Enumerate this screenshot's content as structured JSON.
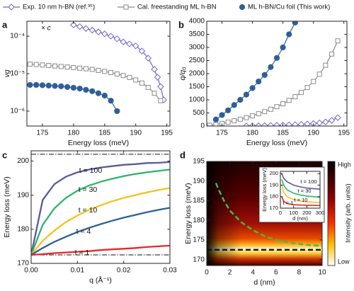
{
  "chart_data": [
    {
      "type": "line",
      "label": "a",
      "x_label": "Energy loss (meV)",
      "y_label": "vg",
      "annotations": [
        "× c"
      ],
      "log_y": true,
      "xlim": [
        172.5,
        195.5
      ],
      "xticks": [
        175,
        180,
        185,
        190,
        195
      ],
      "ylim": [
        4e-07,
        0.00025
      ],
      "yticks": [
        {
          "value": 1e-06,
          "label": "10⁻⁶"
        },
        {
          "value": 1e-05,
          "label": "10⁻⁵"
        },
        {
          "value": 0.0001,
          "label": "10⁻⁴"
        }
      ],
      "series": [
        {
          "name": "Exp. 10 nm h-BN (ref.³⁵)",
          "color": "#7466c4",
          "marker": "diamond",
          "x": [
            180,
            181,
            182,
            183,
            184,
            185,
            186,
            187,
            188,
            189,
            190,
            191,
            192,
            193,
            193.5,
            194,
            194.5
          ],
          "values": [
            0.0002,
            0.00018,
            0.00016,
            0.000145,
            0.00013,
            0.000115,
            0.0001,
            8.5e-05,
            7e-05,
            6.2e-05,
            5.5e-05,
            4e-05,
            2.6e-05,
            1.3e-05,
            8e-06,
            4.5e-06,
            2e-06
          ]
        },
        {
          "name": "Cal. freestanding ML h-BN",
          "color": "#8c8c8c",
          "marker": "square",
          "x": [
            173,
            174,
            175,
            176,
            177,
            178,
            179,
            180,
            181,
            182,
            183,
            184,
            185,
            186,
            187,
            188,
            189,
            190,
            191,
            192,
            193,
            194
          ],
          "values": [
            1.8e-05,
            1.75e-05,
            1.7e-05,
            1.65e-05,
            1.6e-05,
            1.55e-05,
            1.5e-05,
            1.45e-05,
            1.4e-05,
            1.35e-05,
            1.3e-05,
            1.22e-05,
            1.15e-05,
            1.07e-05,
            9.8e-06,
            8.9e-06,
            7.9e-06,
            6.8e-06,
            5.6e-06,
            4.3e-06,
            3e-06,
            1.9e-06
          ]
        },
        {
          "name": "ML h-BN/Cu foil (This work)",
          "color": "#2f5f98",
          "marker": "circle",
          "x": [
            173,
            174,
            175,
            176,
            177,
            178,
            179,
            180,
            181,
            182,
            183,
            184,
            185,
            186,
            187
          ],
          "values": [
            5e-06,
            5e-06,
            4.9e-06,
            4.8e-06,
            4.7e-06,
            4.6e-06,
            4.4e-06,
            4.2e-06,
            4e-06,
            3.7e-06,
            3.4e-06,
            3e-06,
            2.6e-06,
            1.9e-06,
            1e-06
          ]
        }
      ]
    },
    {
      "type": "line",
      "label": "b",
      "x_label": "Energy loss (meV)",
      "y_label": "q/q₀",
      "xlim": [
        172.5,
        195.5
      ],
      "xticks": [
        175,
        180,
        185,
        190,
        195
      ],
      "ylim": [
        0,
        4000
      ],
      "yticks": [
        0,
        500,
        1000,
        1500,
        2000,
        2500,
        3000,
        3500,
        4000
      ],
      "series": [
        {
          "color": "#7466c4",
          "marker": "diamond",
          "x": [
            179,
            180,
            181,
            182,
            183,
            184,
            185,
            186,
            187,
            188,
            189,
            190,
            191,
            192,
            193,
            194
          ],
          "values": [
            5,
            8,
            12,
            17,
            22,
            28,
            35,
            43,
            52,
            64,
            78,
            95,
            120,
            155,
            220,
            320
          ]
        },
        {
          "color": "#8c8c8c",
          "marker": "square",
          "x": [
            173,
            174,
            175,
            176,
            177,
            178,
            179,
            180,
            181,
            182,
            183,
            184,
            185,
            186,
            187,
            188,
            189,
            190,
            191,
            192,
            193,
            194
          ],
          "values": [
            30,
            60,
            100,
            150,
            200,
            260,
            320,
            390,
            470,
            550,
            640,
            740,
            850,
            980,
            1120,
            1280,
            1470,
            1700,
            1980,
            2320,
            2750,
            3250
          ]
        },
        {
          "color": "#2f5f98",
          "marker": "circle",
          "x": [
            174,
            175,
            176,
            177,
            178,
            179,
            180,
            181,
            182,
            183,
            184,
            185,
            186,
            187
          ],
          "values": [
            250,
            420,
            600,
            800,
            1000,
            1200,
            1450,
            1700,
            1950,
            2250,
            2600,
            3000,
            3500,
            3950
          ]
        }
      ]
    },
    {
      "type": "line",
      "label": "c",
      "x_label": "q (Å⁻¹)",
      "y_label": "Energy loss (meV)",
      "xlim": [
        0,
        0.03
      ],
      "xticks": [
        {
          "value": 0,
          "label": "0.00"
        },
        {
          "value": 0.01,
          "label": "0.01"
        },
        {
          "value": 0.02,
          "label": "0.02"
        },
        {
          "value": 0.03,
          "label": "0.03"
        }
      ],
      "ylim": [
        170,
        203
      ],
      "yticks": [
        170,
        180,
        190,
        200
      ],
      "hlines": [
        202,
        172.5
      ],
      "x": [
        0,
        0.0025,
        0.005,
        0.0075,
        0.01,
        0.0125,
        0.015,
        0.0175,
        0.02,
        0.0225,
        0.025,
        0.0275,
        0.03
      ],
      "series": [
        {
          "name": "t = 100",
          "color": "#5a5a9c",
          "values": [
            172.5,
            188.6,
            193.2,
            195.4,
            196.7,
            197.5,
            198.1,
            198.5,
            198.9,
            199.1,
            199.4,
            199.5,
            199.7
          ]
        },
        {
          "name": "t = 30",
          "color": "#2db46c",
          "values": [
            172.5,
            181.3,
            186.1,
            189.2,
            191.3,
            192.8,
            193.9,
            194.8,
            195.6,
            196.2,
            196.7,
            197.1,
            197.5
          ]
        },
        {
          "name": "t = 10",
          "color": "#f4c21c",
          "values": [
            172.5,
            176.6,
            179.6,
            182.1,
            184,
            185.7,
            187,
            188.2,
            189.2,
            190,
            190.8,
            191.5,
            192.1
          ]
        },
        {
          "name": "t = 4",
          "color": "#2a6096",
          "values": [
            172.5,
            174.5,
            176.3,
            177.8,
            179.2,
            180.4,
            181.5,
            182.5,
            183.4,
            184.2,
            185,
            185.7,
            186.3
          ]
        },
        {
          "name": "t = 1",
          "color": "#e8262b",
          "values": [
            172.5,
            172.7,
            173,
            173.2,
            173.4,
            173.6,
            173.9,
            174.1,
            174.3,
            174.5,
            174.8,
            175,
            175.2
          ]
        }
      ]
    },
    {
      "type": "line",
      "label": "d",
      "x_label": "d (nm)",
      "y_label": "Energy loss (meV)",
      "xlim": [
        0,
        10
      ],
      "xticks": [
        0,
        2,
        4,
        6,
        8,
        10
      ],
      "ylim": [
        168.5,
        195
      ],
      "yticks": [
        170,
        175,
        180,
        185,
        190,
        195
      ],
      "colorbar": {
        "high": "High",
        "low": "Low",
        "label": "Intensity (arb. units)"
      },
      "series": [
        {
          "color": "#3cc23c",
          "dash": true,
          "x": [
            0.8,
            1,
            1.5,
            2,
            3,
            4,
            5,
            6,
            7,
            8,
            9,
            10
          ],
          "values": [
            189.5,
            188,
            185,
            182.5,
            179.5,
            177.5,
            176,
            175,
            174.4,
            174,
            173.7,
            173.5
          ]
        },
        {
          "color": "#111111",
          "dash": true,
          "x": [
            0,
            10
          ],
          "values": [
            172.5,
            172.5
          ]
        }
      ]
    },
    {
      "type": "line",
      "x_label": "d (nm)",
      "y_label": "Energy loss (meV)",
      "xlim": [
        0,
        300
      ],
      "xticks": [
        0,
        100,
        200,
        300
      ],
      "ylim": [
        170,
        202
      ],
      "yticks": [
        170,
        180,
        190,
        200
      ],
      "series": [
        {
          "name": "t = 100",
          "color": "#5a5a9c",
          "x": [
            10,
            25,
            50,
            100,
            150,
            200,
            250,
            300
          ],
          "values": [
            200,
            196,
            193,
            190,
            188.5,
            187.5,
            187,
            186.5
          ]
        },
        {
          "name": "t = 30",
          "color": "#2db46c",
          "x": [
            10,
            25,
            50,
            100,
            150,
            200,
            250,
            300
          ],
          "values": [
            195,
            190,
            186,
            183,
            181.5,
            180.5,
            180,
            179.5
          ]
        },
        {
          "name": "t = 10",
          "color": "#f4c21c",
          "x": [
            10,
            25,
            50,
            100,
            150,
            200,
            250,
            300
          ],
          "values": [
            190,
            184,
            180,
            177.5,
            176.3,
            175.6,
            175.2,
            175
          ]
        },
        {
          "name": "t = 1",
          "color": "#e8262b",
          "x": [
            10,
            25,
            50,
            100,
            150,
            200,
            250,
            300
          ],
          "values": [
            180,
            176,
            174,
            173,
            172.7,
            172.5,
            172.4,
            172.3
          ]
        }
      ]
    }
  ]
}
